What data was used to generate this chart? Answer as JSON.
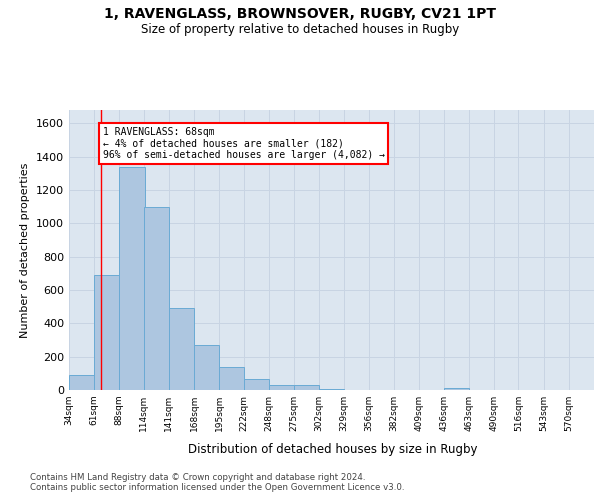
{
  "title_line1": "1, RAVENGLASS, BROWNSOVER, RUGBY, CV21 1PT",
  "title_line2": "Size of property relative to detached houses in Rugby",
  "xlabel": "Distribution of detached houses by size in Rugby",
  "ylabel": "Number of detached properties",
  "bar_color": "#adc6e0",
  "bar_edge_color": "#6aaad4",
  "grid_color": "#c8d4e3",
  "background_color": "#dce6f0",
  "bins_left": [
    34,
    61,
    88,
    114,
    141,
    168,
    195,
    222,
    248,
    275,
    302,
    329,
    356,
    382,
    409,
    436,
    463,
    490,
    516,
    543
  ],
  "bin_width": 27,
  "bar_heights": [
    90,
    690,
    1340,
    1100,
    490,
    270,
    140,
    65,
    30,
    30,
    5,
    0,
    0,
    0,
    0,
    15,
    0,
    0,
    0,
    0
  ],
  "ylim": [
    0,
    1680
  ],
  "yticks": [
    0,
    200,
    400,
    600,
    800,
    1000,
    1200,
    1400,
    1600
  ],
  "red_line_x": 68,
  "annotation_text": "1 RAVENGLASS: 68sqm\n← 4% of detached houses are smaller (182)\n96% of semi-detached houses are larger (4,082) →",
  "annotation_box_color": "white",
  "annotation_border_color": "red",
  "footer_text": "Contains HM Land Registry data © Crown copyright and database right 2024.\nContains public sector information licensed under the Open Government Licence v3.0.",
  "tick_labels": [
    "34sqm",
    "61sqm",
    "88sqm",
    "114sqm",
    "141sqm",
    "168sqm",
    "195sqm",
    "222sqm",
    "248sqm",
    "275sqm",
    "302sqm",
    "329sqm",
    "356sqm",
    "382sqm",
    "409sqm",
    "436sqm",
    "463sqm",
    "490sqm",
    "516sqm",
    "543sqm",
    "570sqm"
  ]
}
